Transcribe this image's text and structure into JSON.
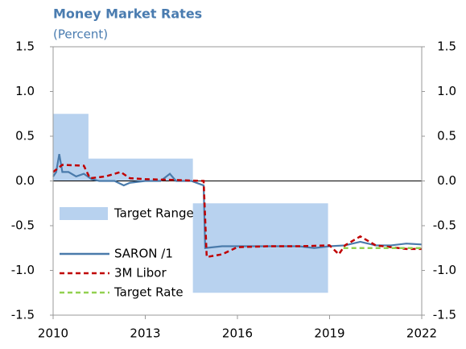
{
  "chart_data": {
    "type": "line",
    "title": "Money Market Rates",
    "subtitle": "(Percent)",
    "xlim": [
      2010,
      2022
    ],
    "xticks": [
      2010,
      2013,
      2016,
      2019,
      2022
    ],
    "ylim": [
      -1.5,
      1.5
    ],
    "yticks": [
      1.5,
      {
        "value": 1,
        "label": "1.0"
      },
      0.5,
      {
        "value": 0,
        "label": "0.0"
      },
      -0.5,
      {
        "value": -1,
        "label": "-1.0"
      },
      -1.5
    ],
    "y2lim": [
      -1.5,
      1.5
    ],
    "y2ticks": [
      1.5,
      {
        "value": 1,
        "label": "1.0"
      },
      0.5,
      {
        "value": 0,
        "label": "0.0"
      },
      -0.5,
      {
        "value": -1,
        "label": "-1.0"
      },
      -1.5
    ],
    "series": [
      {
        "name": "Target Range",
        "style": "band",
        "color": "#b8d2ef",
        "x": [
          2010,
          2011.15,
          2011.15,
          2014.55,
          2014.55,
          2018.95
        ],
        "values": [
          0.75,
          0.75,
          0.25,
          0.25,
          -0.25,
          -0.25
        ],
        "lower": [
          0,
          0,
          0,
          0,
          -1.25,
          -1.25
        ]
      },
      {
        "name": "SARON /1",
        "style": "solid",
        "color": "#4a7bab",
        "x": [
          2010,
          2010.1,
          2010.2,
          2010.3,
          2010.5,
          2010.75,
          2011,
          2011.25,
          2011.5,
          2012,
          2012.3,
          2012.5,
          2013,
          2013.5,
          2013.8,
          2014,
          2014.5,
          2014.9,
          2014.95,
          2015.5,
          2016,
          2017,
          2018,
          2018.5,
          2019,
          2019.5,
          2020,
          2020.5,
          2021,
          2021.5,
          2022
        ],
        "values": [
          0.05,
          0.1,
          0.3,
          0.1,
          0.1,
          0.05,
          0.08,
          0.02,
          0,
          0,
          -0.05,
          -0.02,
          0,
          0,
          0.08,
          0,
          0,
          -0.05,
          -0.75,
          -0.73,
          -0.73,
          -0.73,
          -0.73,
          -0.75,
          -0.73,
          -0.72,
          -0.68,
          -0.72,
          -0.72,
          -0.7,
          -0.71
        ]
      },
      {
        "name": "3M Libor",
        "style": "dashed",
        "color": "#c00000",
        "x": [
          2010,
          2010.3,
          2011,
          2011.2,
          2011.7,
          2012.2,
          2012.5,
          2013,
          2014,
          2014.9,
          2015,
          2015.5,
          2016,
          2017,
          2018,
          2019,
          2019.3,
          2019.5,
          2020,
          2020.5,
          2021,
          2021.5,
          2022
        ],
        "values": [
          0.1,
          0.18,
          0.17,
          0.03,
          0.05,
          0.1,
          0.03,
          0.02,
          0.01,
          0,
          -0.85,
          -0.82,
          -0.74,
          -0.73,
          -0.73,
          -0.72,
          -0.82,
          -0.72,
          -0.62,
          -0.72,
          -0.74,
          -0.76,
          -0.76
        ]
      },
      {
        "name": "Target Rate",
        "style": "dashed",
        "color": "#92d050",
        "x": [
          2019.45,
          2022
        ],
        "values": [
          -0.75,
          -0.75
        ]
      }
    ]
  }
}
